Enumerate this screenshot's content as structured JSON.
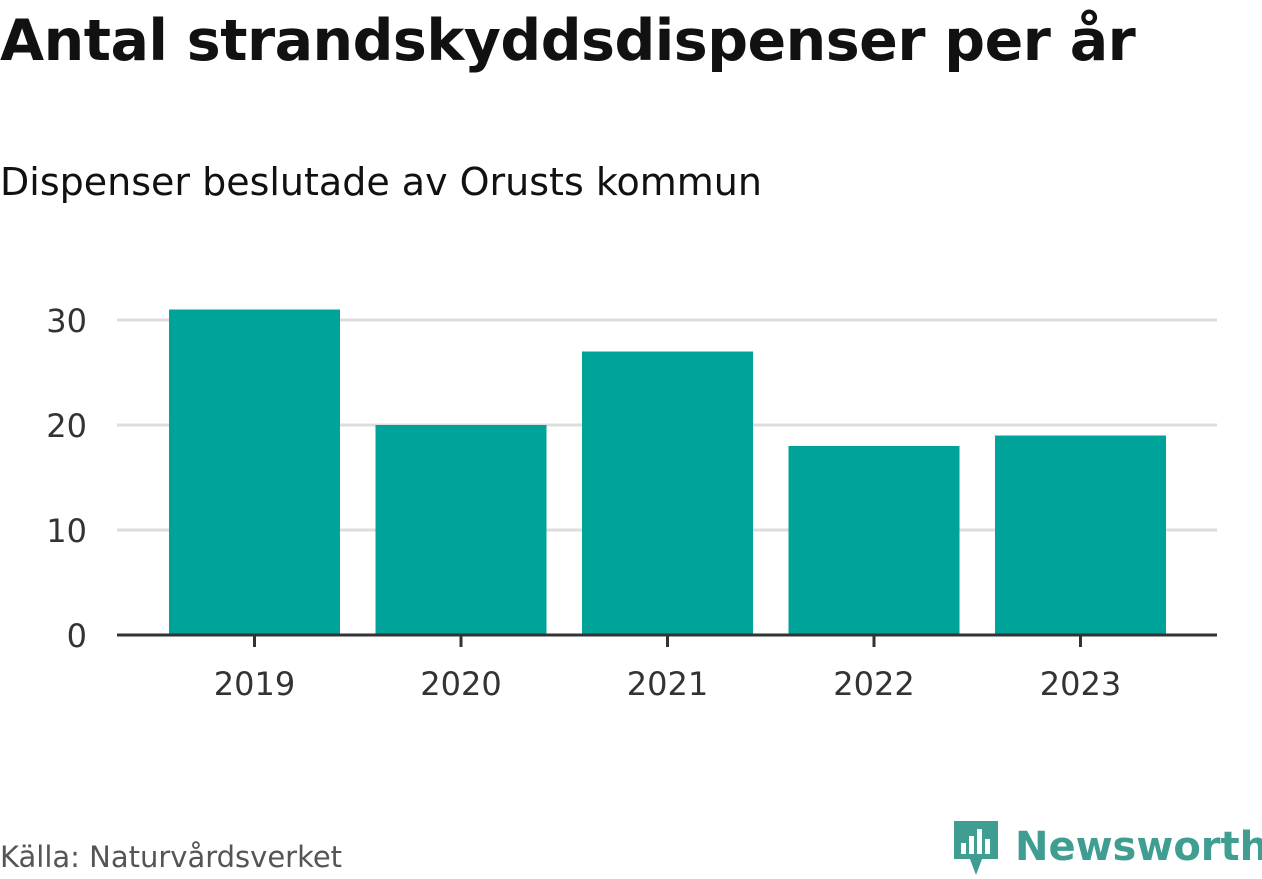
{
  "title": "Antal strandskyddsdispenser per år",
  "subtitle": "Dispenser beslutade av Orusts kommun",
  "source": "Källa: Naturvårdsverket",
  "brand": {
    "name": "Newsworthy",
    "icon": "newsworthy-logo-icon",
    "color": "#3f9e91"
  },
  "colors": {
    "bar": "#00a39a",
    "grid": "#dddddd",
    "axis": "#333333",
    "tick_text": "#333333"
  },
  "chart_data": {
    "type": "bar",
    "title": "Antal strandskyddsdispenser per år",
    "subtitle": "Dispenser beslutade av Orusts kommun",
    "categories": [
      "2019",
      "2020",
      "2021",
      "2022",
      "2023"
    ],
    "values": [
      31,
      20,
      27,
      18,
      19
    ],
    "xlabel": "",
    "ylabel": "",
    "ylim": [
      0,
      30
    ],
    "yticks": [
      0,
      10,
      20,
      30
    ],
    "grid": true
  }
}
